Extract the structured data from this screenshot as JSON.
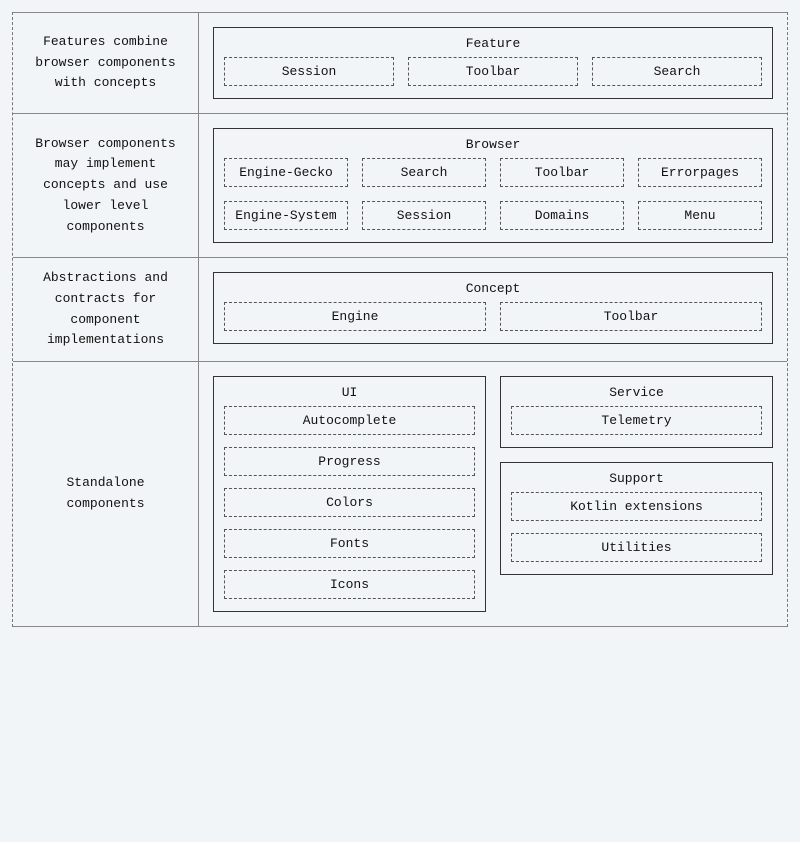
{
  "diagram": {
    "background_color": "#f2f5f7",
    "border_color_solid": "#888888",
    "border_color_dashed_outer": "#777777",
    "border_color_dashed_chip": "#555555",
    "font_family": "monospace",
    "font_size_pt": 10,
    "rows": [
      {
        "label": "Features combine browser components with concepts",
        "groups": [
          {
            "title": "Feature",
            "items": [
              "Session",
              "Toolbar",
              "Search"
            ],
            "layout": "row"
          }
        ]
      },
      {
        "label": "Browser components may implement concepts and use lower level components",
        "groups": [
          {
            "title": "Browser",
            "items": [
              "Engine-Gecko",
              "Search",
              "Toolbar",
              "Errorpages",
              "Engine-System",
              "Session",
              "Domains",
              "Menu"
            ],
            "layout": "grid4"
          }
        ]
      },
      {
        "label": "Abstractions and contracts for component implementations",
        "groups": [
          {
            "title": "Concept",
            "items": [
              "Engine",
              "Toolbar"
            ],
            "layout": "row"
          }
        ]
      },
      {
        "label": "Standalone components",
        "layout": "two-col",
        "left_groups": [
          {
            "title": "UI",
            "items": [
              "Autocomplete",
              "Progress",
              "Colors",
              "Fonts",
              "Icons"
            ],
            "layout": "stack"
          }
        ],
        "right_groups": [
          {
            "title": "Service",
            "items": [
              "Telemetry"
            ],
            "layout": "stack"
          },
          {
            "title": "Support",
            "items": [
              "Kotlin extensions",
              "Utilities"
            ],
            "layout": "stack"
          }
        ]
      }
    ]
  }
}
